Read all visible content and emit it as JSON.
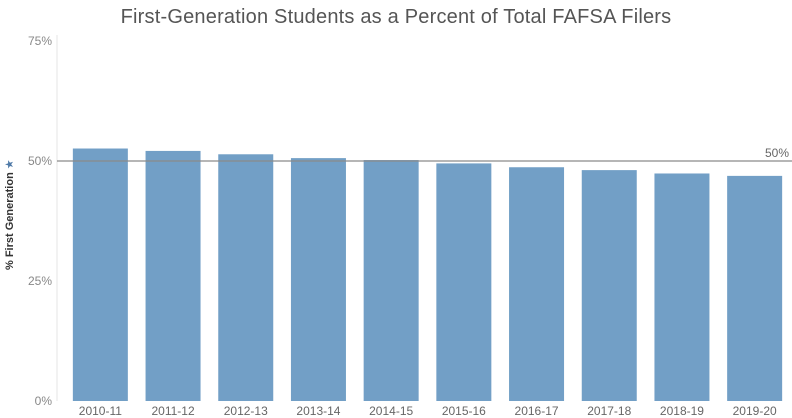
{
  "chart_data": {
    "type": "bar",
    "title": "First-Generation Students as a Percent of Total FAFSA Filers",
    "xlabel": "",
    "ylabel": "% First Generation",
    "categories": [
      "2010-11",
      "2011-12",
      "2012-13",
      "2013-14",
      "2014-15",
      "2015-16",
      "2016-17",
      "2017-18",
      "2018-19",
      "2019-20"
    ],
    "values": [
      52.6,
      52.1,
      51.4,
      50.6,
      50.2,
      49.5,
      48.7,
      48.1,
      47.4,
      46.9
    ],
    "ylim": [
      0,
      75
    ],
    "y_ticks": [
      0,
      25,
      50,
      75
    ],
    "y_tick_labels": [
      "0%",
      "25%",
      "50%",
      "75%"
    ],
    "reference_line": {
      "value": 50,
      "label": "50%"
    },
    "bar_color": "#729fc6",
    "reference_color": "#999999",
    "grid": false,
    "legend": "none"
  }
}
